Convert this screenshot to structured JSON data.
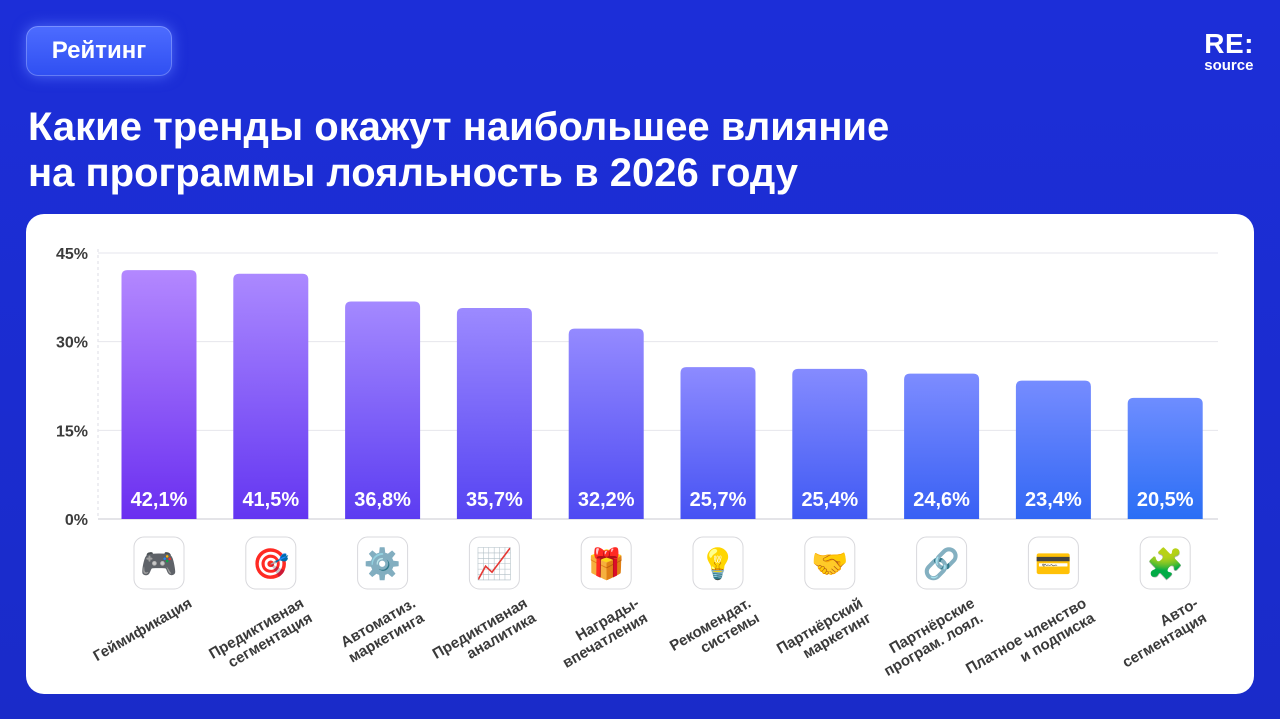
{
  "header": {
    "badge": "Рейтинг",
    "logo_main": "RE:",
    "logo_sub": "source",
    "title_line1": "Какие тренды окажут наибольшее влияние",
    "title_line2": "на программы лояльность в 2026 году"
  },
  "colors": {
    "background": "#1c2ed8",
    "bar_top_first": "#b388ff",
    "bar_bottom_first": "#6a2ef0",
    "bar_top_last": "#6e8dff",
    "bar_bottom_last": "#2a6ef5"
  },
  "chart_data": {
    "type": "bar",
    "categories": [
      "Геймификация",
      "Предиктивная\nсегментация",
      "Автоматиз.\nмаркетинга",
      "Предиктивная\nаналитика",
      "Награды-\nвпечатления",
      "Рекомендат.\nсистемы",
      "Партнёрский\nмаркетинг",
      "Партнёрские\nпрограм. лоял.",
      "Платное членство\nи подписка",
      "Авто-\nсегментация"
    ],
    "values": [
      42.1,
      41.5,
      36.8,
      35.7,
      32.2,
      25.7,
      25.4,
      24.6,
      23.4,
      20.5
    ],
    "value_labels": [
      "42,1%",
      "41,5%",
      "36,8%",
      "35,7%",
      "32,2%",
      "25,7%",
      "25,4%",
      "24,6%",
      "23,4%",
      "20,5%"
    ],
    "icons": [
      "🎮",
      "🎯",
      "⚙️",
      "📈",
      "🎁",
      "💡",
      "🤝",
      "🔗",
      "💳",
      "🧩"
    ],
    "icon_names": [
      "gamepad-icon",
      "target-icon",
      "gear-icon",
      "chart-up-icon",
      "gift-icon",
      "lightbulb-icon",
      "handshake-icon",
      "link-icon",
      "credit-card-icon",
      "puzzle-icon"
    ],
    "y_ticks": [
      0,
      15,
      30,
      45
    ],
    "y_tick_labels": [
      "0%",
      "15%",
      "30%",
      "45%"
    ],
    "ylim": [
      0,
      45
    ],
    "grid": true,
    "title": "",
    "xlabel": "",
    "ylabel": ""
  }
}
